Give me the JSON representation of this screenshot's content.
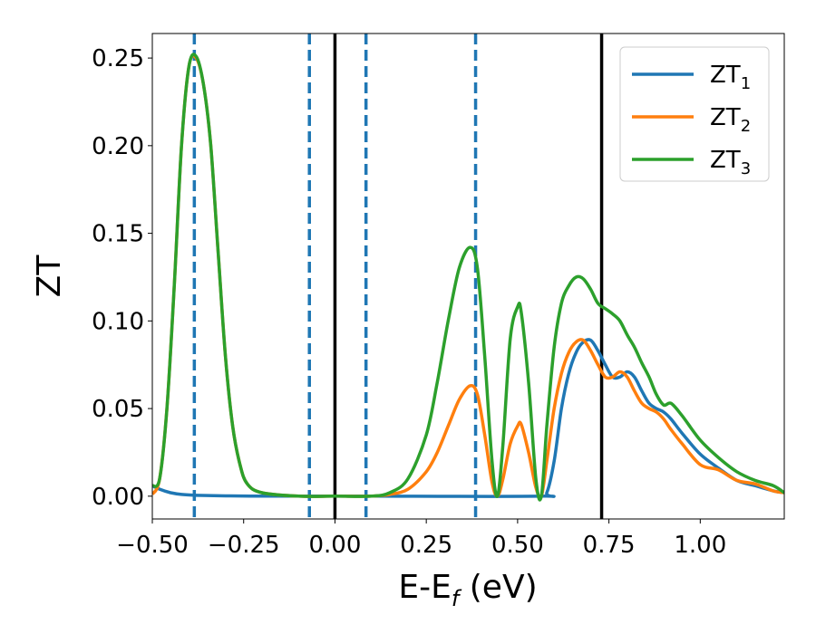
{
  "chart_data": {
    "type": "line",
    "xlabel": "E-E",
    "xlabel_sub": "f",
    "xlabel_unit": " (eV)",
    "ylabel": "ZT",
    "xlim": [
      -0.5,
      1.23
    ],
    "ylim": [
      -0.013,
      0.264
    ],
    "x_ticks": [
      -0.5,
      -0.25,
      0.0,
      0.25,
      0.5,
      0.75,
      1.0
    ],
    "x_tick_labels": [
      "−0.50",
      "−0.25",
      "0.00",
      "0.25",
      "0.50",
      "0.75",
      "1.00"
    ],
    "y_ticks": [
      0.0,
      0.05,
      0.1,
      0.15,
      0.2,
      0.25
    ],
    "y_tick_labels": [
      "0.00",
      "0.05",
      "0.10",
      "0.15",
      "0.20",
      "0.25"
    ],
    "legend_position": "top-right",
    "dashed_vlines": {
      "color": "#1f77b4",
      "x": [
        -0.385,
        -0.07,
        0.085,
        0.385
      ]
    },
    "solid_vlines": {
      "color": "#000000",
      "x": [
        0.0,
        0.73
      ]
    },
    "series": [
      {
        "name": "ZT",
        "name_sub": "1",
        "color": "#1f77b4",
        "x": [
          -0.5,
          -0.48,
          -0.45,
          -0.42,
          -0.38,
          -0.3,
          -0.2,
          -0.1,
          0.0,
          0.1,
          0.56,
          0.58,
          0.6,
          0.62,
          0.64,
          0.66,
          0.68,
          0.7,
          0.72,
          0.74,
          0.76,
          0.78,
          0.8,
          0.82,
          0.84,
          0.86,
          0.88,
          0.9,
          0.92,
          0.95,
          1.0,
          1.05,
          1.1,
          1.15,
          1.2,
          1.23
        ],
        "y": [
          0.006,
          0.004,
          0.002,
          0.001,
          0.0005,
          0.0002,
          0.0,
          0.0,
          0.0,
          0.0,
          0.0,
          0.002,
          0.02,
          0.05,
          0.07,
          0.082,
          0.088,
          0.089,
          0.083,
          0.075,
          0.068,
          0.068,
          0.071,
          0.068,
          0.06,
          0.053,
          0.05,
          0.048,
          0.044,
          0.036,
          0.024,
          0.016,
          0.009,
          0.006,
          0.003,
          0.002
        ]
      },
      {
        "name": "ZT",
        "name_sub": "2",
        "color": "#ff7f0e",
        "x": [
          -0.5,
          -0.48,
          -0.46,
          -0.44,
          -0.42,
          -0.4,
          -0.38,
          -0.36,
          -0.34,
          -0.32,
          -0.3,
          -0.28,
          -0.26,
          -0.24,
          -0.2,
          -0.1,
          0.0,
          0.1,
          0.15,
          0.2,
          0.25,
          0.28,
          0.31,
          0.34,
          0.37,
          0.39,
          0.41,
          0.43,
          0.445,
          0.46,
          0.48,
          0.5,
          0.51,
          0.53,
          0.55,
          0.565,
          0.58,
          0.6,
          0.62,
          0.64,
          0.66,
          0.68,
          0.7,
          0.72,
          0.74,
          0.76,
          0.78,
          0.8,
          0.82,
          0.84,
          0.86,
          0.88,
          0.9,
          0.92,
          0.95,
          1.0,
          1.05,
          1.1,
          1.15,
          1.2,
          1.23
        ],
        "y": [
          0.001,
          0.01,
          0.05,
          0.12,
          0.2,
          0.245,
          0.25,
          0.235,
          0.2,
          0.14,
          0.08,
          0.04,
          0.018,
          0.007,
          0.002,
          0.0,
          0.0,
          0.0,
          0.001,
          0.004,
          0.014,
          0.025,
          0.04,
          0.055,
          0.063,
          0.058,
          0.035,
          0.008,
          0.0,
          0.01,
          0.03,
          0.04,
          0.041,
          0.025,
          0.005,
          0.0,
          0.02,
          0.05,
          0.07,
          0.082,
          0.088,
          0.089,
          0.083,
          0.075,
          0.068,
          0.068,
          0.071,
          0.068,
          0.06,
          0.053,
          0.05,
          0.048,
          0.044,
          0.038,
          0.03,
          0.018,
          0.015,
          0.009,
          0.007,
          0.003,
          0.002
        ]
      },
      {
        "name": "ZT",
        "name_sub": "3",
        "color": "#2ca02c",
        "x": [
          -0.5,
          -0.48,
          -0.46,
          -0.44,
          -0.42,
          -0.4,
          -0.38,
          -0.36,
          -0.34,
          -0.32,
          -0.3,
          -0.28,
          -0.26,
          -0.24,
          -0.2,
          -0.1,
          0.0,
          0.1,
          0.15,
          0.2,
          0.25,
          0.28,
          0.31,
          0.34,
          0.37,
          0.39,
          0.41,
          0.43,
          0.445,
          0.46,
          0.48,
          0.5,
          0.51,
          0.53,
          0.55,
          0.565,
          0.58,
          0.6,
          0.62,
          0.64,
          0.66,
          0.68,
          0.7,
          0.72,
          0.74,
          0.76,
          0.78,
          0.8,
          0.82,
          0.84,
          0.86,
          0.88,
          0.9,
          0.92,
          0.95,
          1.0,
          1.05,
          1.1,
          1.15,
          1.2,
          1.23
        ],
        "y": [
          0.006,
          0.01,
          0.05,
          0.12,
          0.2,
          0.245,
          0.251,
          0.235,
          0.2,
          0.14,
          0.08,
          0.04,
          0.018,
          0.007,
          0.002,
          0.0,
          0.0,
          0.0,
          0.002,
          0.01,
          0.035,
          0.065,
          0.1,
          0.13,
          0.142,
          0.13,
          0.08,
          0.02,
          0.0,
          0.03,
          0.09,
          0.108,
          0.105,
          0.065,
          0.01,
          0.0,
          0.04,
          0.085,
          0.11,
          0.12,
          0.125,
          0.124,
          0.118,
          0.11,
          0.107,
          0.104,
          0.1,
          0.092,
          0.085,
          0.076,
          0.068,
          0.058,
          0.052,
          0.053,
          0.046,
          0.032,
          0.022,
          0.014,
          0.009,
          0.006,
          0.002
        ]
      }
    ]
  }
}
